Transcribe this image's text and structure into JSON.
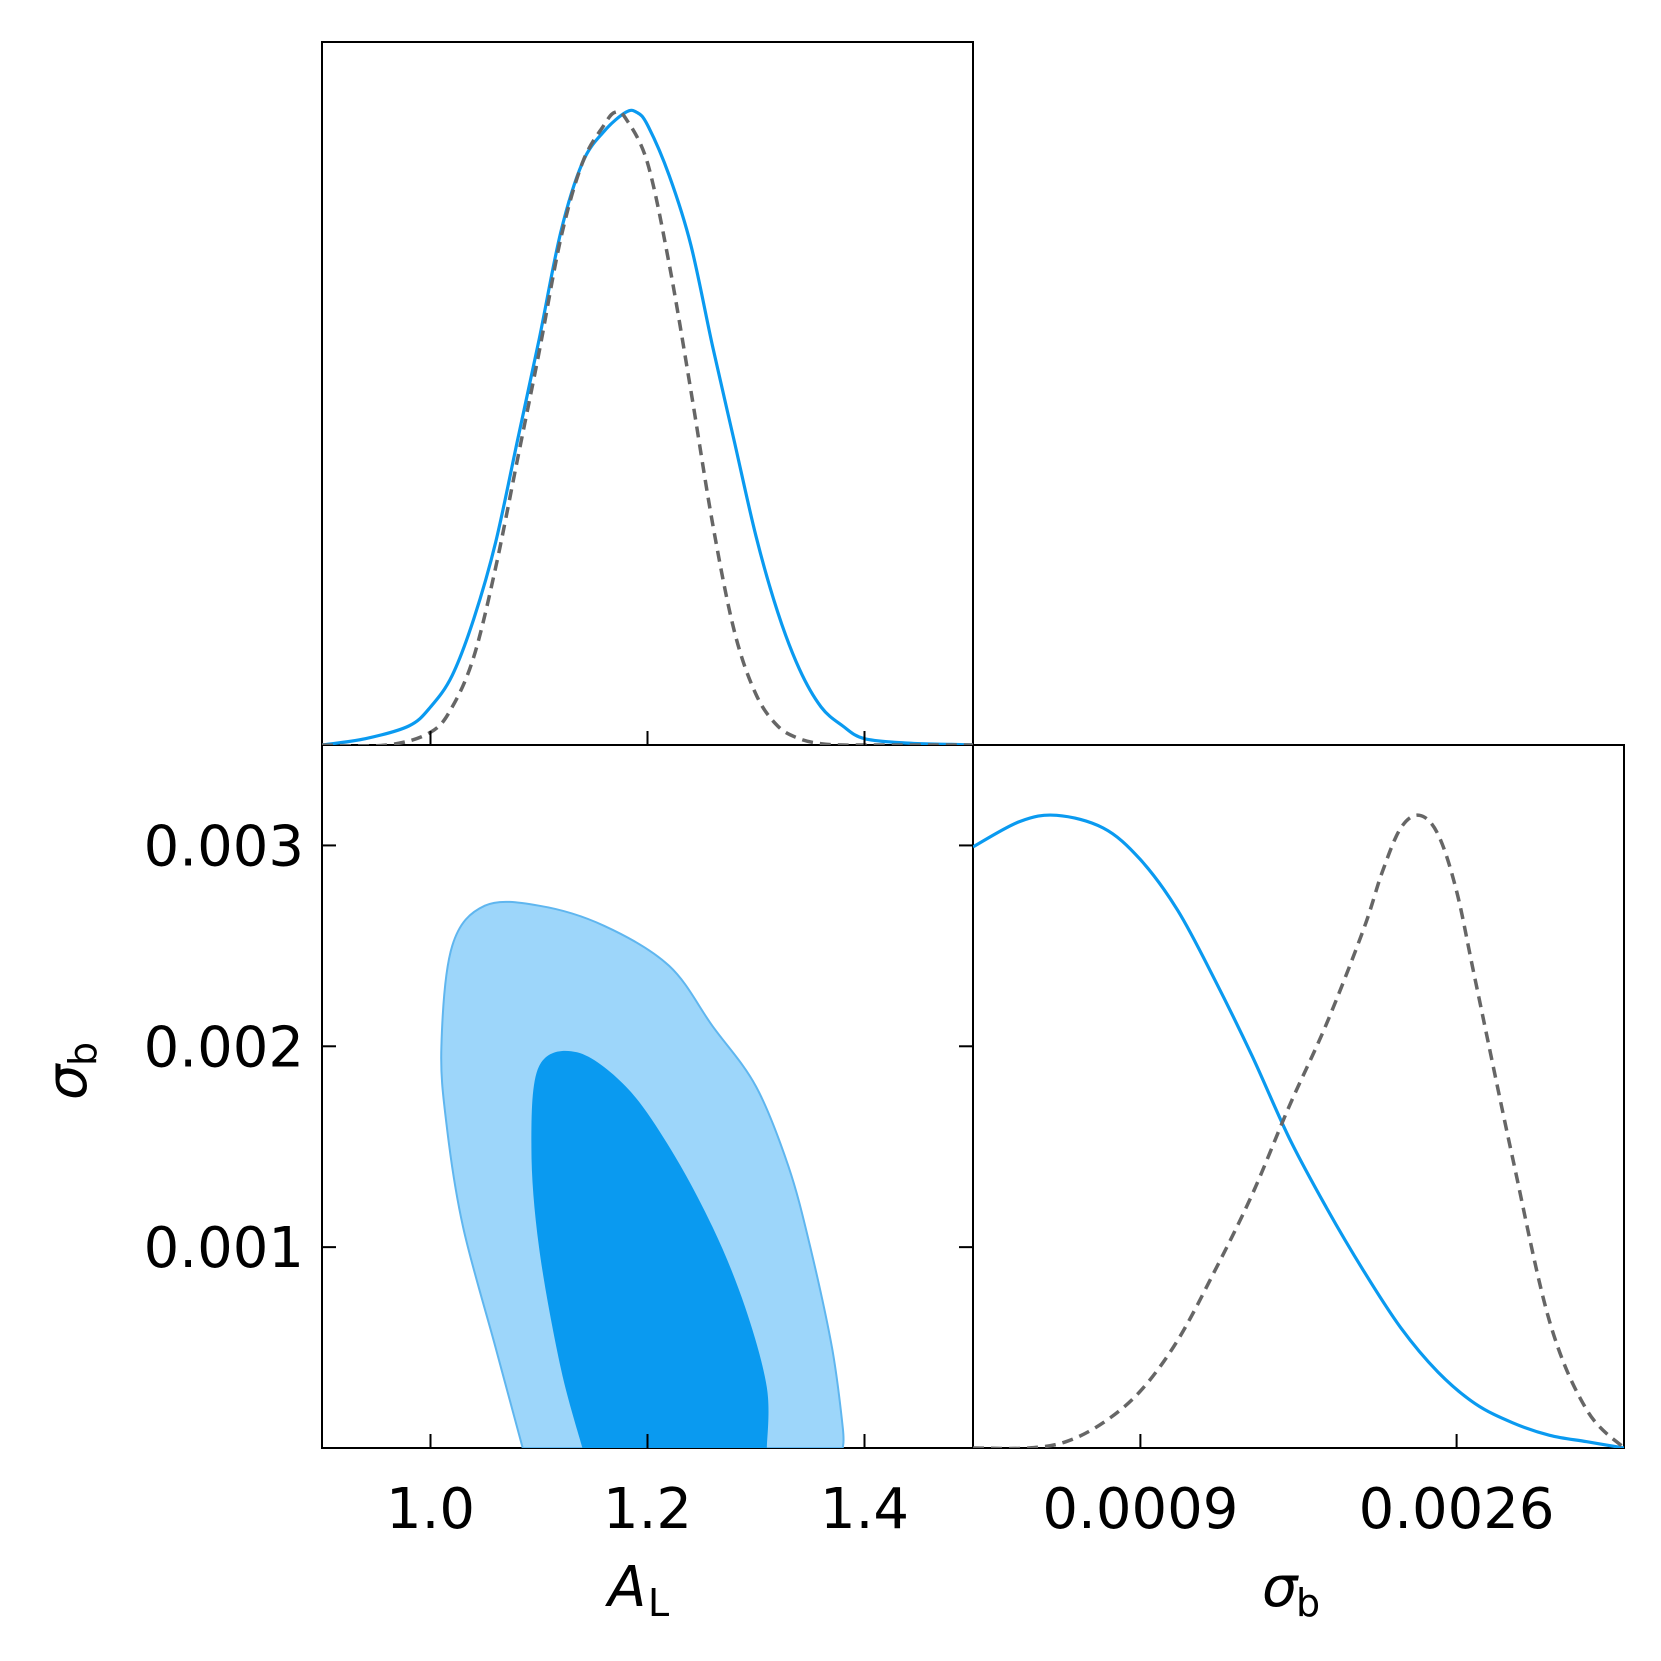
{
  "chart_data": [
    {
      "panel": "marginal-AL",
      "type": "line",
      "xlabel": "",
      "ylabel": "",
      "xlim": [
        0.9,
        1.5
      ],
      "ylim": [
        0,
        1.0
      ],
      "x_ticks": [
        1.0,
        1.2,
        1.4
      ],
      "x_tick_labels_shown": false,
      "series": [
        {
          "style": "solid",
          "color": "#0a9af0",
          "x": [
            0.9,
            0.94,
            0.98,
            1.0,
            1.02,
            1.04,
            1.06,
            1.08,
            1.1,
            1.12,
            1.14,
            1.16,
            1.18,
            1.19,
            1.2,
            1.22,
            1.24,
            1.26,
            1.28,
            1.3,
            1.32,
            1.34,
            1.36,
            1.38,
            1.4,
            1.44,
            1.48,
            1.5
          ],
          "y": [
            0.0,
            0.01,
            0.03,
            0.06,
            0.11,
            0.2,
            0.32,
            0.48,
            0.64,
            0.81,
            0.92,
            0.97,
            1.0,
            1.0,
            0.98,
            0.9,
            0.79,
            0.63,
            0.48,
            0.33,
            0.21,
            0.12,
            0.06,
            0.03,
            0.01,
            0.003,
            0.001,
            0.0
          ]
        },
        {
          "style": "dashed",
          "color": "#666666",
          "x": [
            0.9,
            0.96,
            1.0,
            1.02,
            1.04,
            1.06,
            1.08,
            1.1,
            1.12,
            1.14,
            1.16,
            1.17,
            1.18,
            1.2,
            1.22,
            1.24,
            1.26,
            1.28,
            1.3,
            1.32,
            1.34,
            1.36,
            1.38,
            1.4,
            1.5
          ],
          "y": [
            0.0,
            0.0,
            0.02,
            0.06,
            0.14,
            0.28,
            0.45,
            0.62,
            0.8,
            0.92,
            0.98,
            1.0,
            0.99,
            0.92,
            0.76,
            0.56,
            0.35,
            0.18,
            0.08,
            0.03,
            0.01,
            0.002,
            0.0,
            0.0,
            0.0
          ]
        }
      ]
    },
    {
      "panel": "joint-AL-sigmab",
      "type": "contour",
      "xlabel": "A_L",
      "ylabel": "σ_b",
      "xlim": [
        0.9,
        1.5
      ],
      "ylim": [
        0,
        0.0035
      ],
      "x_ticks": [
        1.0,
        1.2,
        1.4
      ],
      "x_tick_labels": [
        "1.0",
        "1.2",
        "1.4"
      ],
      "y_ticks": [
        0.001,
        0.002,
        0.003
      ],
      "y_tick_labels": [
        "0.001",
        "0.002",
        "0.003"
      ],
      "contours": [
        {
          "level": "95%",
          "color": "#9dd6fa",
          "edge": "#5fb6ef",
          "points": [
            [
              1.085,
              0.0
            ],
            [
              1.06,
              0.0005
            ],
            [
              1.03,
              0.0011
            ],
            [
              1.015,
              0.0016
            ],
            [
              1.01,
              0.002
            ],
            [
              1.02,
              0.0025
            ],
            [
              1.05,
              0.0027
            ],
            [
              1.1,
              0.0027
            ],
            [
              1.16,
              0.0026
            ],
            [
              1.22,
              0.0024
            ],
            [
              1.26,
              0.0021
            ],
            [
              1.3,
              0.0018
            ],
            [
              1.33,
              0.0014
            ],
            [
              1.35,
              0.001
            ],
            [
              1.37,
              0.0005
            ],
            [
              1.38,
              0.0001
            ],
            [
              1.38,
              0.0
            ]
          ]
        },
        {
          "level": "68%",
          "color": "#0a9af0",
          "points": [
            [
              1.14,
              0.0
            ],
            [
              1.12,
              0.0004
            ],
            [
              1.1,
              0.001
            ],
            [
              1.093,
              0.0015
            ],
            [
              1.1,
              0.0019
            ],
            [
              1.135,
              0.00197
            ],
            [
              1.18,
              0.0018
            ],
            [
              1.22,
              0.0015
            ],
            [
              1.26,
              0.0011
            ],
            [
              1.29,
              0.0007
            ],
            [
              1.31,
              0.0003
            ],
            [
              1.31,
              0.0
            ]
          ]
        }
      ]
    },
    {
      "panel": "marginal-sigmab",
      "type": "line",
      "xlabel": "σ_b",
      "ylabel": "",
      "xlim": [
        0.0,
        0.0035
      ],
      "ylim": [
        0,
        1.0
      ],
      "x_ticks": [
        0.0009,
        0.0026
      ],
      "x_tick_labels": [
        "0.0009",
        "0.0026"
      ],
      "series": [
        {
          "style": "solid",
          "color": "#0a9af0",
          "x": [
            0.0,
            0.00025,
            0.00045,
            0.0007,
            0.0009,
            0.0011,
            0.0013,
            0.0015,
            0.0017,
            0.0019,
            0.0021,
            0.0023,
            0.0025,
            0.0027,
            0.0029,
            0.0031,
            0.0033,
            0.0035
          ],
          "y": [
            0.95,
            0.99,
            1.0,
            0.98,
            0.93,
            0.85,
            0.74,
            0.62,
            0.49,
            0.38,
            0.28,
            0.19,
            0.12,
            0.07,
            0.04,
            0.02,
            0.01,
            0.0
          ]
        },
        {
          "style": "dashed",
          "color": "#666666",
          "x": [
            0.0,
            0.0003,
            0.0005,
            0.0007,
            0.0009,
            0.0011,
            0.0013,
            0.0015,
            0.0017,
            0.0019,
            0.0021,
            0.0022,
            0.0023,
            0.0024,
            0.0025,
            0.0026,
            0.0027,
            0.0029,
            0.0031,
            0.0033,
            0.0035
          ],
          "y": [
            0.0,
            0.0,
            0.01,
            0.04,
            0.09,
            0.17,
            0.28,
            0.4,
            0.54,
            0.67,
            0.82,
            0.91,
            0.98,
            1.0,
            0.97,
            0.88,
            0.74,
            0.46,
            0.2,
            0.06,
            0.0
          ]
        }
      ]
    }
  ]
}
